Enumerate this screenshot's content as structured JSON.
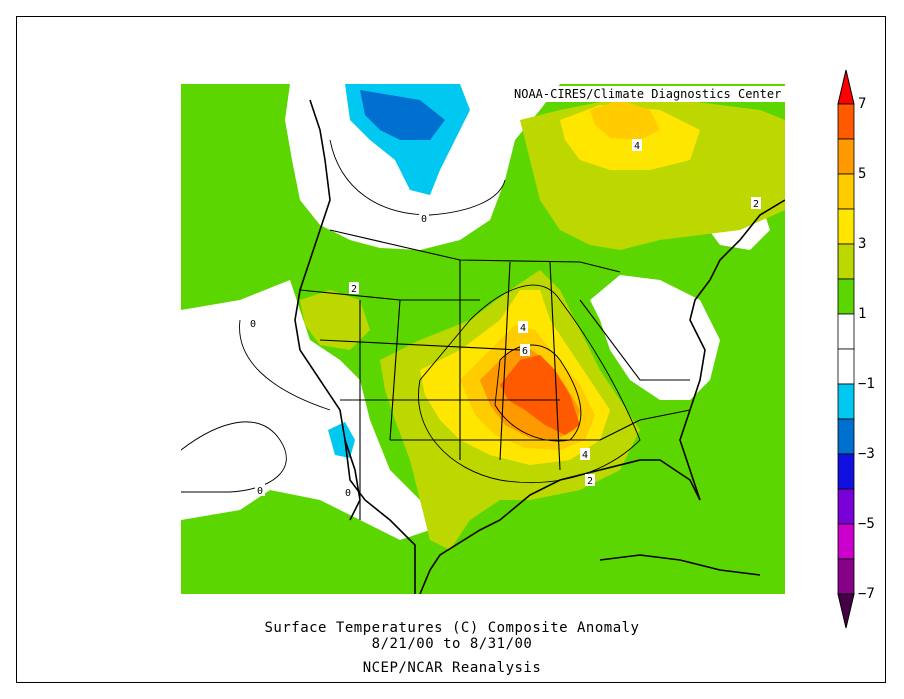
{
  "credit": "NOAA-CIRES/Climate Diagnostics Center",
  "caption": {
    "line1": "Surface Temperatures (C)   Composite Anomaly",
    "line2": "8/21/00  to 8/31/00",
    "line3": "NCEP/NCAR Reanalysis"
  },
  "colorbar": {
    "labels": [
      "7",
      "5",
      "3",
      "1",
      "−1",
      "−3",
      "−5",
      "−7"
    ],
    "colors": [
      "#ff0000",
      "#ff5a00",
      "#ff9900",
      "#ffcc00",
      "#ffe600",
      "#bcd800",
      "#5cd600",
      "#ffffff",
      "#ffffff",
      "#00c8f0",
      "#0070d0",
      "#1010e0",
      "#7a00d8",
      "#cc00cc",
      "#880088",
      "#440044"
    ]
  },
  "contour_labels": [
    {
      "id": "label-0-northwest",
      "text": "0"
    },
    {
      "id": "label-0-west",
      "text": "0"
    },
    {
      "id": "label-0-southwest",
      "text": "0"
    },
    {
      "id": "label-0-baja",
      "text": "0"
    },
    {
      "id": "label-2-rockies",
      "text": "2"
    },
    {
      "id": "label-4-hudson",
      "text": "4"
    },
    {
      "id": "label-2-maritimes",
      "text": "2"
    },
    {
      "id": "label-4-plains",
      "text": "4"
    },
    {
      "id": "label-6-plains",
      "text": "6"
    },
    {
      "id": "label-4-gulf",
      "text": "4"
    },
    {
      "id": "label-2-gulf",
      "text": "2"
    }
  ],
  "colors": {
    "green": "#5cd600",
    "lightgreen": "#bcd800",
    "yellow": "#ffe600",
    "gold": "#ffcc00",
    "orange": "#ff9900",
    "darkorange": "#ff5a00",
    "cyan": "#00c8f0",
    "blue": "#0070d0"
  }
}
